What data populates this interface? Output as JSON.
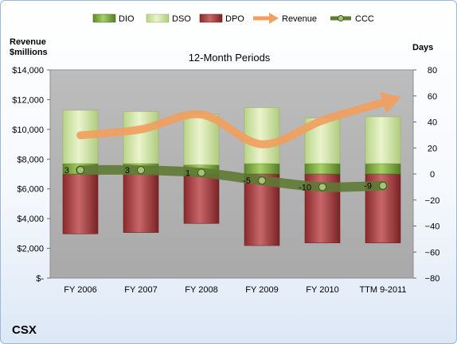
{
  "chart_data": {
    "type": "bar",
    "title": "12-Month Periods",
    "company": "CSX",
    "y_left_label": [
      "Revenue",
      "$millions"
    ],
    "y_right_label": "Days",
    "y_left_ticks": [
      "$14,000",
      "$12,000",
      "$10,000",
      "$8,000",
      "$6,000",
      "$4,000",
      "$2,000",
      "$-"
    ],
    "y_right_ticks": [
      "80",
      "60",
      "40",
      "20",
      "0",
      "−20",
      "−40",
      "−60",
      "−80"
    ],
    "ylim_left": [
      0,
      14000
    ],
    "ylim_right": [
      -80,
      80
    ],
    "categories": [
      "FY 2006",
      "FY 2007",
      "FY 2008",
      "FY 2009",
      "FY 2010",
      "TTM 9-2011"
    ],
    "legend": [
      "DIO",
      "DSO",
      "DPO",
      "Revenue",
      "CCC"
    ],
    "series": [
      {
        "name": "DIO",
        "axis": "right",
        "values": [
          8,
          8,
          7,
          8,
          8,
          8
        ]
      },
      {
        "name": "DSO",
        "axis": "right",
        "values": [
          41,
          40,
          39,
          43,
          35,
          36
        ]
      },
      {
        "name": "DPO",
        "axis": "right",
        "values": [
          46,
          45,
          38,
          55,
          53,
          53
        ]
      },
      {
        "name": "Revenue",
        "axis": "left",
        "values": [
          9600,
          10000,
          11000,
          9000,
          10600,
          11800
        ]
      },
      {
        "name": "CCC",
        "axis": "right",
        "values": [
          3,
          3,
          1,
          -5,
          -10,
          -9
        ]
      }
    ],
    "ccc_labels": [
      "3",
      "3",
      "1",
      "-5",
      "-10",
      "-9"
    ],
    "colors": {
      "DIO": "#8fbf4a",
      "DSO": "#d6e8a8",
      "DPO": "#b5474a",
      "Revenue": "#f0a060",
      "CCC": "#5e7a34",
      "plot_bg": "#b3b3b3"
    }
  }
}
